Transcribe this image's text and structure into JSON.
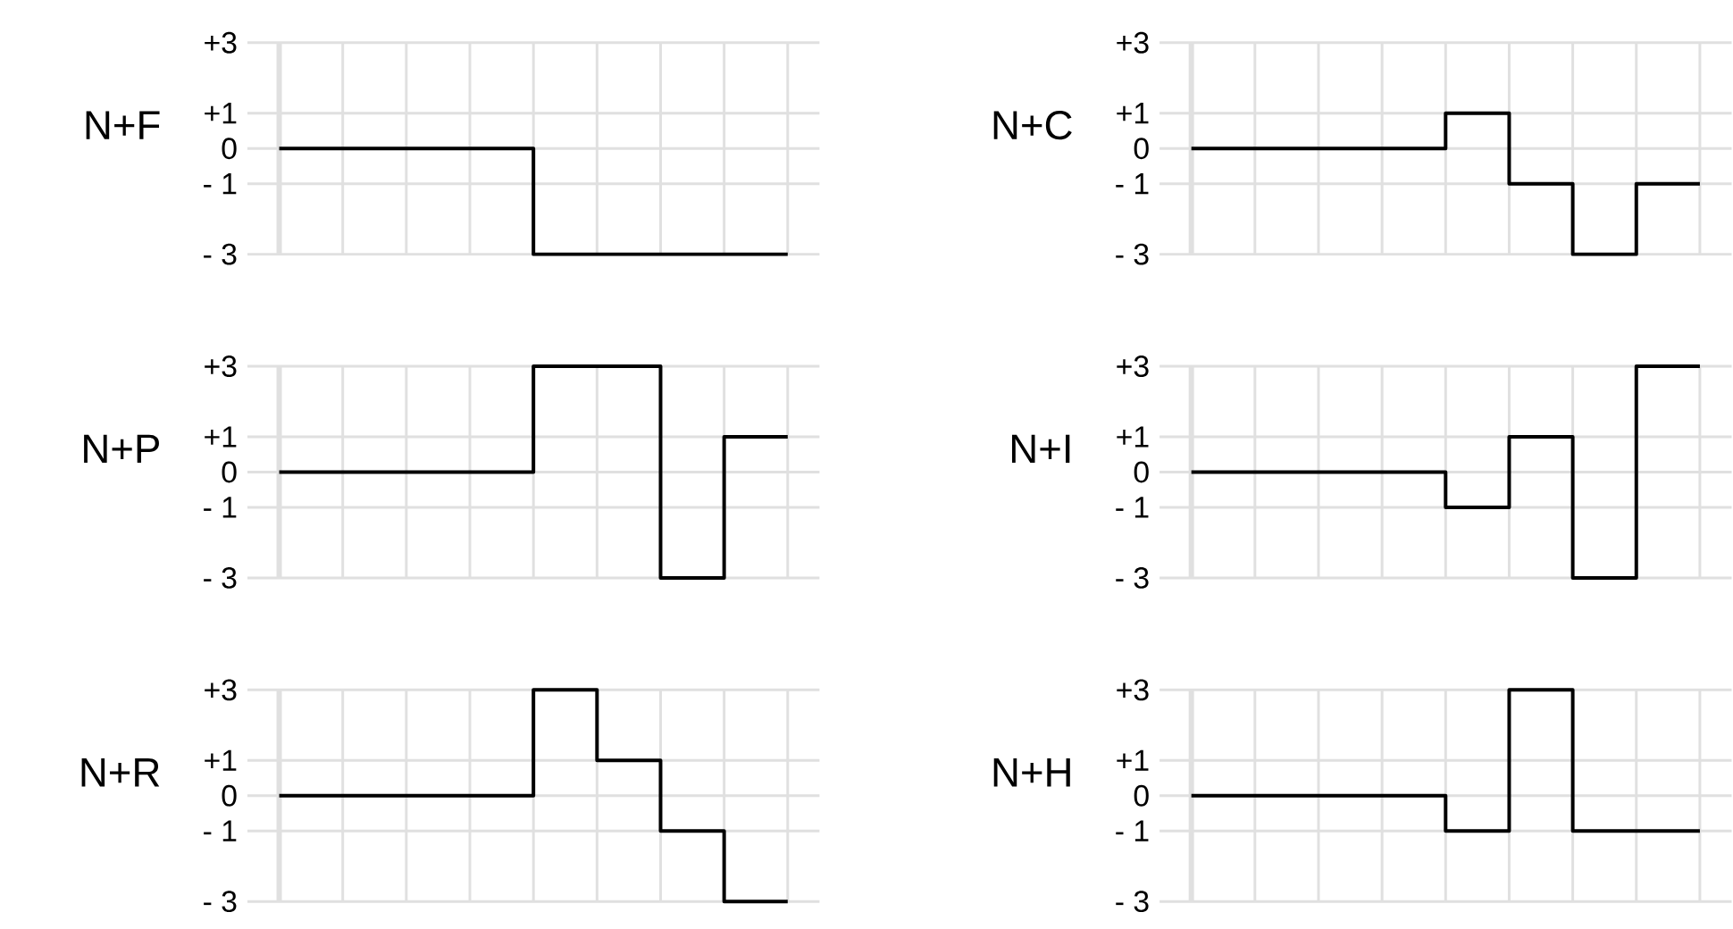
{
  "chart_data": [
    {
      "type": "step",
      "ylabel": "N+F",
      "categories": [
        null,
        null,
        null,
        null,
        null,
        null,
        null,
        null,
        null
      ],
      "values": [
        0,
        0,
        0,
        0,
        -3,
        -3,
        -3,
        -3,
        -3
      ],
      "color": "#000000",
      "ylim": [
        -3,
        3
      ],
      "yticks": [
        {
          "value": 3,
          "label": "+3"
        },
        {
          "value": 1,
          "label": "+1"
        },
        0,
        {
          "value": -1,
          "label": "- 1"
        },
        {
          "value": -3,
          "label": "- 3"
        }
      ],
      "grid": true,
      "tick_labels": "y"
    },
    {
      "type": "step",
      "ylabel": "N+C",
      "categories": [
        null,
        null,
        null,
        null,
        null,
        null,
        null,
        null,
        null
      ],
      "values": [
        0,
        0,
        0,
        0,
        1,
        -1,
        -3,
        -1,
        -1
      ],
      "color": "#000000",
      "ylim": [
        -3,
        3
      ],
      "yticks": [
        {
          "value": 3,
          "label": "+3"
        },
        {
          "value": 1,
          "label": "+1"
        },
        0,
        {
          "value": -1,
          "label": "- 1"
        },
        {
          "value": -3,
          "label": "- 3"
        }
      ],
      "grid": true,
      "tick_labels": "y"
    },
    {
      "type": "step",
      "ylabel": "N+P",
      "categories": [
        null,
        null,
        null,
        null,
        null,
        null,
        null,
        null,
        null
      ],
      "values": [
        0,
        0,
        0,
        0,
        3,
        3,
        -3,
        1,
        1
      ],
      "color": "#000000",
      "ylim": [
        -3,
        3
      ],
      "yticks": [
        {
          "value": 3,
          "label": "+3"
        },
        {
          "value": 1,
          "label": "+1"
        },
        0,
        {
          "value": -1,
          "label": "- 1"
        },
        {
          "value": -3,
          "label": "- 3"
        }
      ],
      "grid": true,
      "tick_labels": "y"
    },
    {
      "type": "step",
      "ylabel": "N+I",
      "categories": [
        null,
        null,
        null,
        null,
        null,
        null,
        null,
        null,
        null
      ],
      "values": [
        0,
        0,
        0,
        0,
        -1,
        1,
        -3,
        3,
        3
      ],
      "color": "#000000",
      "ylim": [
        -3,
        3
      ],
      "yticks": [
        {
          "value": 3,
          "label": "+3"
        },
        {
          "value": 1,
          "label": "+1"
        },
        0,
        {
          "value": -1,
          "label": "- 1"
        },
        {
          "value": -3,
          "label": "- 3"
        }
      ],
      "grid": true,
      "tick_labels": "y"
    },
    {
      "type": "step",
      "ylabel": "N+R",
      "categories": [
        null,
        null,
        null,
        null,
        null,
        null,
        null,
        null,
        null
      ],
      "values": [
        0,
        0,
        0,
        0,
        3,
        1,
        -1,
        -3,
        -3
      ],
      "color": "#000000",
      "ylim": [
        -3,
        3
      ],
      "yticks": [
        {
          "value": 3,
          "label": "+3"
        },
        {
          "value": 1,
          "label": "+1"
        },
        0,
        {
          "value": -1,
          "label": "- 1"
        },
        {
          "value": -3,
          "label": "- 3"
        }
      ],
      "grid": true,
      "tick_labels": "y"
    },
    {
      "type": "step",
      "ylabel": "N+H",
      "categories": [
        null,
        null,
        null,
        null,
        null,
        null,
        null,
        null,
        null
      ],
      "values": [
        0,
        0,
        0,
        0,
        -1,
        3,
        -1,
        -1,
        -1
      ],
      "color": "#000000",
      "ylim": [
        -3,
        3
      ],
      "yticks": [
        {
          "value": 3,
          "label": "+3"
        },
        {
          "value": 1,
          "label": "+1"
        },
        0,
        {
          "value": -1,
          "label": "- 1"
        },
        {
          "value": -3,
          "label": "- 3"
        }
      ],
      "grid": true,
      "tick_labels": "y"
    }
  ]
}
